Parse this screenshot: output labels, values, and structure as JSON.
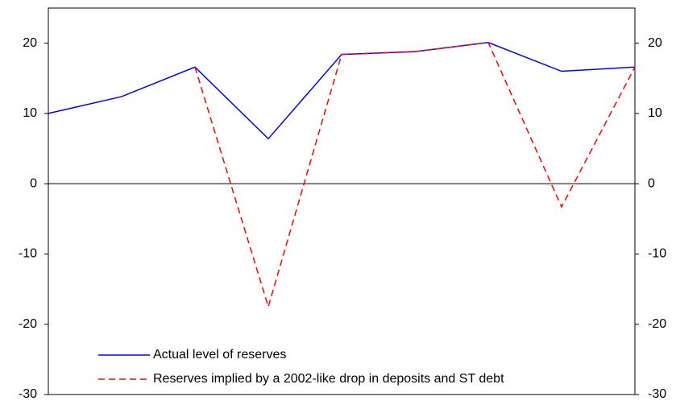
{
  "chart_data": {
    "type": "line",
    "categories": [
      null,
      null,
      null,
      null,
      null,
      null,
      null,
      null,
      null
    ],
    "series": [
      {
        "name": "Actual level of reserves",
        "color": "#0000ff",
        "dash": false,
        "values": [
          10,
          12.4,
          16.6,
          6.4,
          18.4,
          18.8,
          20.1,
          16,
          16.6
        ]
      },
      {
        "name": "Reserves implied by a 2002-like drop in deposits and ST debt",
        "color": "#ff0000",
        "dash": true,
        "values": [
          null,
          null,
          16.6,
          -17.5,
          18.4,
          18.8,
          20.1,
          -3.3,
          16.6
        ]
      }
    ],
    "ylim": [
      -30,
      25
    ],
    "yticks": [
      -30,
      -20,
      -10,
      0,
      10,
      20
    ],
    "y2lim": [
      -30,
      25
    ],
    "y2ticks": [
      -30,
      -20,
      -10,
      0,
      10,
      20
    ],
    "legend": "lower-left"
  }
}
